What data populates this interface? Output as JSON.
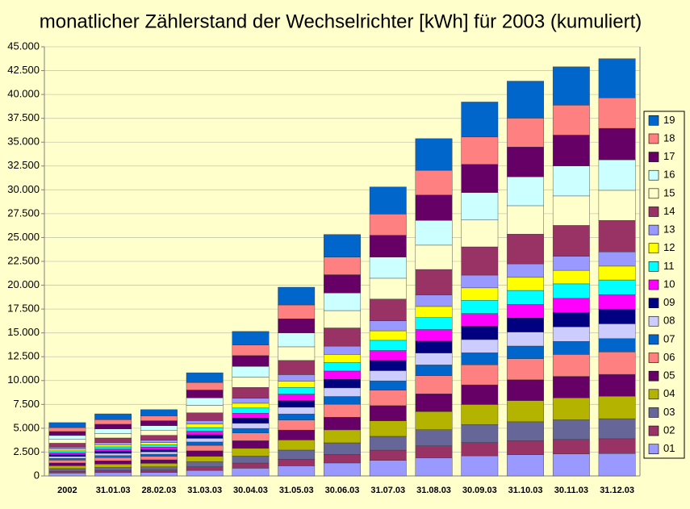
{
  "chart_data": {
    "type": "bar",
    "stacked": true,
    "title": "monatlicher Zählerstand der Wechselrichter [kWh] für 2003 (kumuliert)",
    "categories": [
      "2002",
      "31.01.03",
      "28.02.03",
      "31.03.03",
      "30.04.03",
      "31.05.03",
      "30.06.03",
      "31.07.03",
      "31.08.03",
      "30.09.03",
      "31.10.03",
      "30.11.03",
      "31.12.03"
    ],
    "ylim": [
      0,
      45000
    ],
    "yticks": [
      0,
      {
        "value": 2500,
        "label": "2.500"
      },
      {
        "value": 5000,
        "label": "5.000"
      },
      {
        "value": 7500,
        "label": "7.500"
      },
      {
        "value": 10000,
        "label": "10.000"
      },
      {
        "value": 12500,
        "label": "12.500"
      },
      {
        "value": 15000,
        "label": "15.000"
      },
      {
        "value": 17500,
        "label": "17.500"
      },
      {
        "value": 20000,
        "label": "20.000"
      },
      {
        "value": 22500,
        "label": "22.500"
      },
      {
        "value": 25000,
        "label": "25.000"
      },
      {
        "value": 27500,
        "label": "27.500"
      },
      {
        "value": 30000,
        "label": "30.000"
      },
      {
        "value": 32500,
        "label": "32.500"
      },
      {
        "value": 35000,
        "label": "35.000"
      },
      {
        "value": 37500,
        "label": "37.500"
      },
      {
        "value": 40000,
        "label": "40.000"
      },
      {
        "value": 42500,
        "label": "42.500"
      },
      {
        "value": 45000,
        "label": "45.000"
      }
    ],
    "grid": true,
    "legend": "right",
    "series": [
      {
        "name": "01",
        "color": "#9999ff",
        "values": [
          300,
          350,
          370,
          580,
          810,
          1060,
          1360,
          1630,
          1900,
          2110,
          2220,
          2300,
          2350
        ]
      },
      {
        "name": "02",
        "color": "#993366",
        "values": [
          200,
          230,
          250,
          380,
          540,
          700,
          900,
          1070,
          1250,
          1390,
          1470,
          1520,
          1550
        ]
      },
      {
        "name": "03",
        "color": "#666699",
        "values": [
          270,
          310,
          330,
          520,
          730,
          950,
          1210,
          1450,
          1700,
          1880,
          1990,
          2060,
          2100
        ]
      },
      {
        "name": "04",
        "color": "#b3b300",
        "values": [
          300,
          350,
          370,
          580,
          810,
          1060,
          1360,
          1630,
          1900,
          2110,
          2220,
          2300,
          2350
        ]
      },
      {
        "name": "05",
        "color": "#660066",
        "values": [
          290,
          340,
          370,
          570,
          800,
          1040,
          1330,
          1590,
          1860,
          2060,
          2180,
          2260,
          2300
        ]
      },
      {
        "name": "06",
        "color": "#ff8080",
        "values": [
          300,
          350,
          370,
          580,
          810,
          1060,
          1360,
          1630,
          1900,
          2110,
          2220,
          2300,
          2350
        ]
      },
      {
        "name": "07",
        "color": "#0066cc",
        "values": [
          180,
          210,
          220,
          350,
          480,
          630,
          810,
          970,
          1130,
          1250,
          1320,
          1370,
          1400
        ]
      },
      {
        "name": "08",
        "color": "#ccccff",
        "values": [
          200,
          230,
          250,
          380,
          540,
          700,
          900,
          1070,
          1250,
          1390,
          1470,
          1520,
          1550
        ]
      },
      {
        "name": "09",
        "color": "#000080",
        "values": [
          200,
          230,
          250,
          380,
          540,
          700,
          900,
          1070,
          1250,
          1390,
          1470,
          1520,
          1550
        ]
      },
      {
        "name": "10",
        "color": "#ff00ff",
        "values": [
          190,
          220,
          240,
          370,
          520,
          680,
          870,
          1040,
          1210,
          1340,
          1420,
          1470,
          1500
        ]
      },
      {
        "name": "11",
        "color": "#00ffff",
        "values": [
          200,
          230,
          250,
          380,
          540,
          700,
          900,
          1070,
          1250,
          1390,
          1470,
          1520,
          1550
        ]
      },
      {
        "name": "12",
        "color": "#ffff00",
        "values": [
          190,
          220,
          230,
          360,
          500,
          660,
          840,
          1000,
          1170,
          1300,
          1370,
          1420,
          1450
        ]
      },
      {
        "name": "13",
        "color": "#9999ff",
        "values": [
          190,
          220,
          240,
          370,
          520,
          680,
          870,
          1040,
          1210,
          1340,
          1420,
          1470,
          1500
        ]
      },
      {
        "name": "14",
        "color": "#993366",
        "values": [
          420,
          490,
          520,
          820,
          1140,
          1490,
          1910,
          2290,
          2670,
          2960,
          3120,
          3240,
          3300
        ]
      },
      {
        "name": "15",
        "color": "#ffffcc",
        "values": [
          400,
          470,
          500,
          780,
          1090,
          1430,
          1820,
          2180,
          2550,
          2820,
          2980,
          3090,
          3150
        ]
      },
      {
        "name": "16",
        "color": "#ccffff",
        "values": [
          410,
          480,
          510,
          790,
          1110,
          1450,
          1850,
          2220,
          2590,
          2870,
          3030,
          3140,
          3200
        ]
      },
      {
        "name": "17",
        "color": "#660066",
        "values": [
          420,
          490,
          520,
          820,
          1140,
          1490,
          1910,
          2290,
          2670,
          2960,
          3120,
          3240,
          3300
        ]
      },
      {
        "name": "18",
        "color": "#ff8080",
        "values": [
          410,
          480,
          510,
          790,
          1110,
          1450,
          1850,
          2220,
          2590,
          2870,
          3030,
          3140,
          3200
        ]
      },
      {
        "name": "19",
        "color": "#0066cc",
        "values": [
          520,
          610,
          650,
          1020,
          1420,
          1860,
          2370,
          2840,
          3320,
          3670,
          3880,
          4020,
          4100
        ]
      }
    ]
  }
}
